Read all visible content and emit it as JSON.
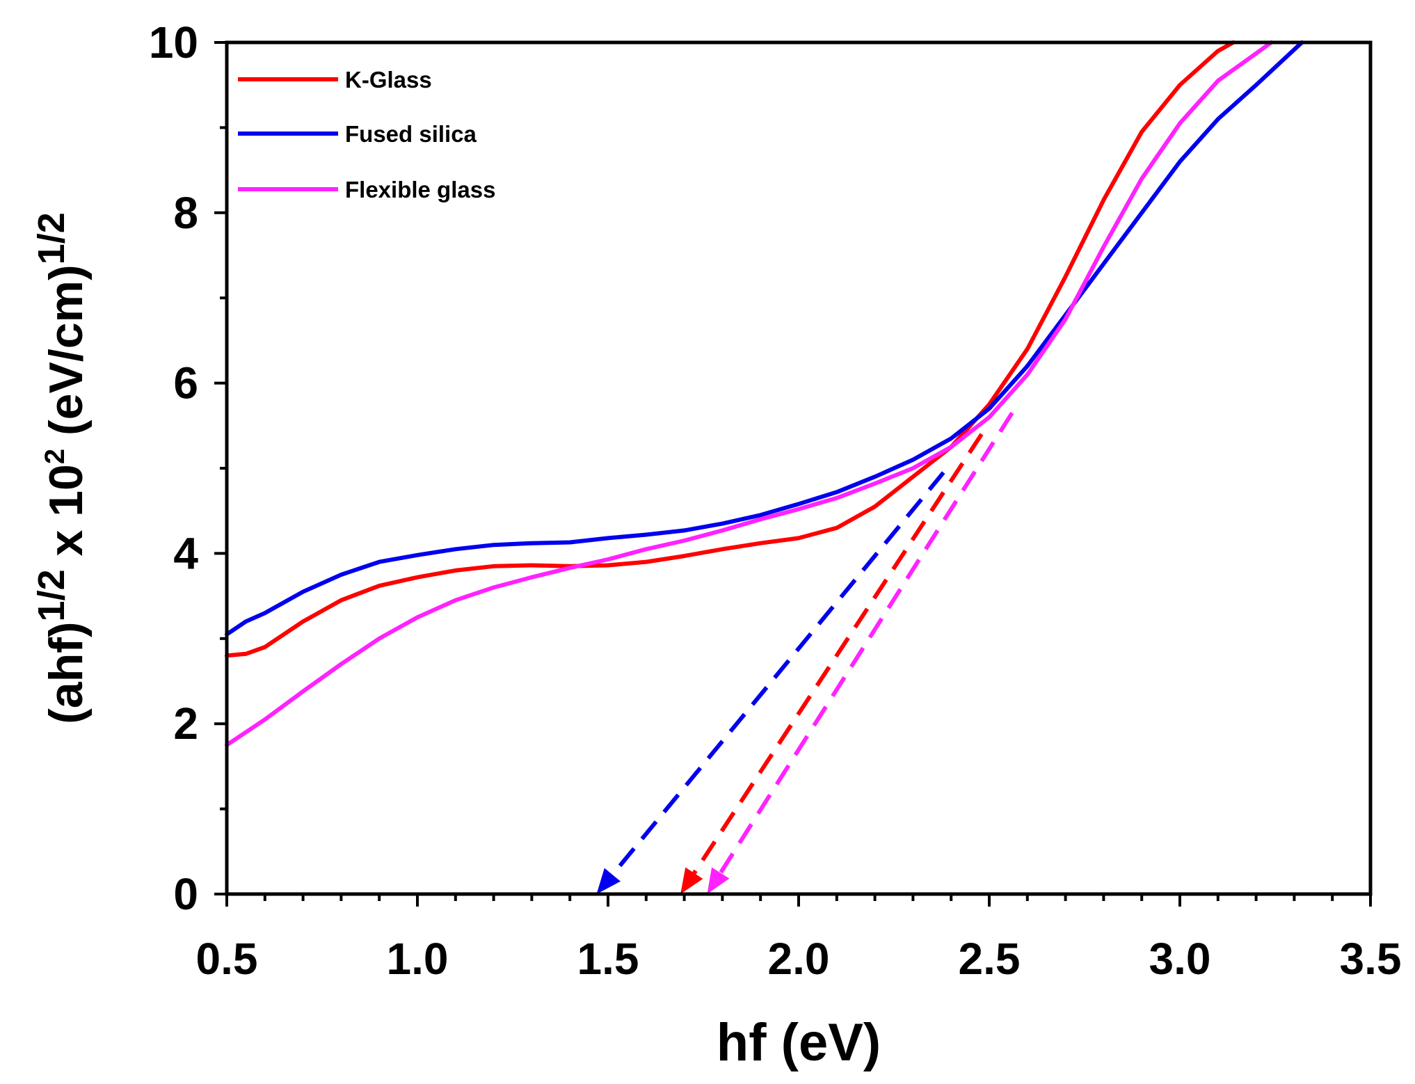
{
  "chart_data": {
    "type": "line",
    "title": "",
    "xlabel": "hf (eV)",
    "ylabel": {
      "base": "(ahf)",
      "exp1": "1/2",
      "mid": " x 10",
      "exp2": "2",
      "unit": " (eV/cm)",
      "exp3": "1/2"
    },
    "xlim": [
      0.5,
      3.5
    ],
    "ylim": [
      0,
      10
    ],
    "xticks": [
      0.5,
      1.0,
      1.5,
      2.0,
      2.5,
      3.0,
      3.5
    ],
    "xtick_labels": [
      "0.5",
      "1.0",
      "1.5",
      "2.0",
      "2.5",
      "3.0",
      "3.5"
    ],
    "yticks": [
      0,
      2,
      4,
      6,
      8,
      10
    ],
    "ytick_labels": [
      "0",
      "2",
      "4",
      "6",
      "8",
      "10"
    ],
    "legend_position": "top-left",
    "series": [
      {
        "name": "K-Glass",
        "color": "#ff0000",
        "x": [
          0.5,
          0.55,
          0.6,
          0.7,
          0.8,
          0.9,
          1.0,
          1.1,
          1.2,
          1.3,
          1.4,
          1.5,
          1.6,
          1.7,
          1.8,
          1.9,
          2.0,
          2.1,
          2.2,
          2.3,
          2.4,
          2.5,
          2.6,
          2.7,
          2.8,
          2.9,
          3.0,
          3.1,
          3.14
        ],
        "y": [
          2.8,
          2.82,
          2.9,
          3.2,
          3.45,
          3.62,
          3.72,
          3.8,
          3.85,
          3.86,
          3.85,
          3.86,
          3.9,
          3.97,
          4.05,
          4.12,
          4.18,
          4.3,
          4.55,
          4.9,
          5.25,
          5.75,
          6.4,
          7.25,
          8.15,
          8.95,
          9.5,
          9.9,
          10.0
        ]
      },
      {
        "name": "Fused silica",
        "color": "#0000ee",
        "x": [
          0.5,
          0.55,
          0.6,
          0.7,
          0.8,
          0.9,
          1.0,
          1.1,
          1.2,
          1.3,
          1.4,
          1.5,
          1.6,
          1.7,
          1.8,
          1.9,
          2.0,
          2.1,
          2.2,
          2.3,
          2.4,
          2.5,
          2.6,
          2.7,
          2.8,
          2.9,
          3.0,
          3.1,
          3.2,
          3.32
        ],
        "y": [
          3.05,
          3.2,
          3.3,
          3.55,
          3.75,
          3.9,
          3.98,
          4.05,
          4.1,
          4.12,
          4.13,
          4.18,
          4.22,
          4.27,
          4.35,
          4.45,
          4.58,
          4.72,
          4.9,
          5.1,
          5.35,
          5.7,
          6.2,
          6.8,
          7.4,
          8.0,
          8.6,
          9.1,
          9.5,
          10.0
        ]
      },
      {
        "name": "Flexible glass",
        "color": "#ff22ff",
        "x": [
          0.5,
          0.6,
          0.7,
          0.8,
          0.9,
          1.0,
          1.1,
          1.2,
          1.3,
          1.4,
          1.5,
          1.6,
          1.7,
          1.8,
          1.9,
          2.0,
          2.1,
          2.2,
          2.3,
          2.4,
          2.5,
          2.6,
          2.7,
          2.8,
          2.9,
          3.0,
          3.1,
          3.24
        ],
        "y": [
          1.75,
          2.05,
          2.38,
          2.7,
          3.0,
          3.25,
          3.45,
          3.6,
          3.72,
          3.83,
          3.93,
          4.05,
          4.15,
          4.27,
          4.4,
          4.52,
          4.65,
          4.82,
          5.0,
          5.25,
          5.6,
          6.1,
          6.75,
          7.6,
          8.4,
          9.05,
          9.55,
          10.0
        ]
      }
    ],
    "extrapolations": [
      {
        "series": "Fused silica",
        "color": "#0000ee",
        "from": [
          2.38,
          4.95
        ],
        "to": [
          1.47,
          0.0
        ]
      },
      {
        "series": "K-Glass",
        "color": "#ff0000",
        "from": [
          2.48,
          5.4
        ],
        "to": [
          1.69,
          0.0
        ]
      },
      {
        "series": "Flexible glass",
        "color": "#ff22ff",
        "from": [
          2.56,
          5.65
        ],
        "to": [
          1.76,
          0.0
        ]
      }
    ]
  }
}
